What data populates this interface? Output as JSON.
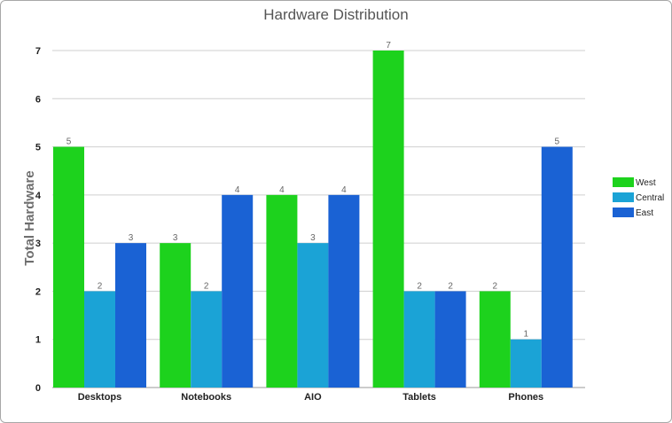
{
  "chart_data": {
    "type": "bar",
    "title": "Hardware Distribution",
    "xlabel": "",
    "ylabel": "Total Hardware",
    "ylim": [
      0,
      7
    ],
    "yticks": [
      0,
      1,
      2,
      3,
      4,
      5,
      6,
      7
    ],
    "categories": [
      "Desktops",
      "Notebooks",
      "AIO",
      "Tablets",
      "Phones"
    ],
    "series": [
      {
        "name": "West",
        "color": "#1dd21d",
        "values": [
          5,
          3,
          4,
          7,
          2
        ]
      },
      {
        "name": "Central",
        "color": "#1ba3d6",
        "values": [
          2,
          2,
          3,
          2,
          1
        ]
      },
      {
        "name": "East",
        "color": "#1a62d4",
        "values": [
          3,
          4,
          4,
          2,
          5
        ]
      }
    ],
    "grid": true,
    "legend": "right",
    "data_labels": true
  }
}
